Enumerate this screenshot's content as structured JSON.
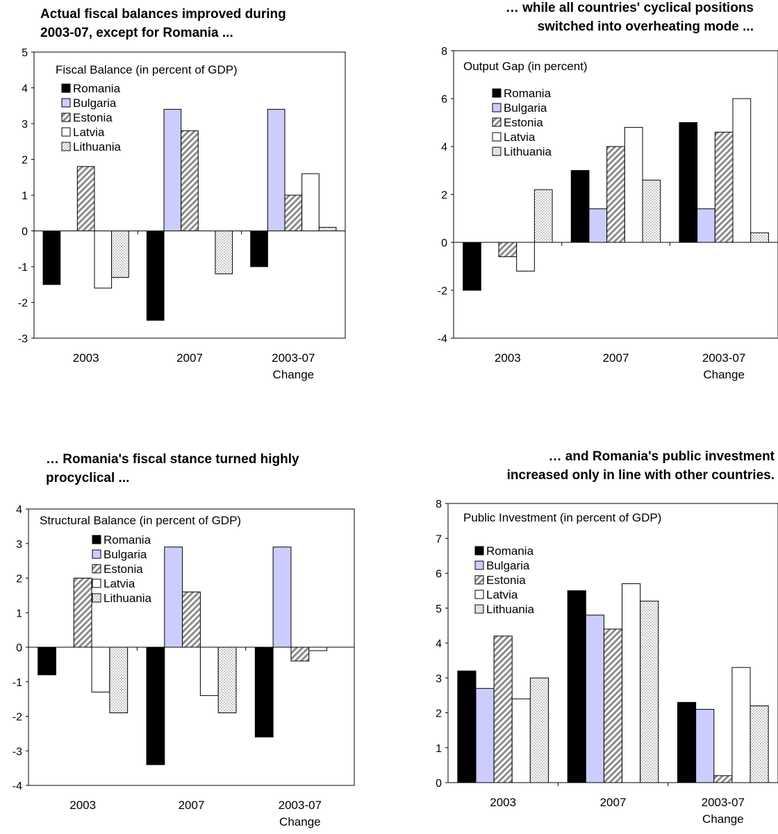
{
  "palette": {
    "Romania": "#000000",
    "Bulgaria": "#ccccff",
    "Estonia": "hatch",
    "Latvia": "#ffffff",
    "Lithuania": "dots"
  },
  "chart_data": [
    {
      "type": "bar",
      "title_lines": [
        "Actual fiscal balances improved during",
        "2003-07, except for Romania ..."
      ],
      "inner_title": "Fiscal Balance (in percent of GDP)",
      "categories": [
        [
          "2003"
        ],
        [
          "2007"
        ],
        [
          "2003-07",
          "Change"
        ]
      ],
      "ylim": [
        -3,
        5
      ],
      "yticks": [
        -3,
        -2,
        -1,
        0,
        1,
        2,
        3,
        4,
        5
      ],
      "legend": [
        "Romania",
        "Bulgaria",
        "Estonia",
        "Latvia",
        "Lithuania"
      ],
      "series": [
        {
          "name": "Romania",
          "values": [
            -1.5,
            -2.5,
            -1.0
          ]
        },
        {
          "name": "Bulgaria",
          "values": [
            0,
            3.4,
            3.4
          ]
        },
        {
          "name": "Estonia",
          "values": [
            1.8,
            2.8,
            1.0
          ]
        },
        {
          "name": "Latvia",
          "values": [
            -1.6,
            0,
            1.6
          ]
        },
        {
          "name": "Lithuania",
          "values": [
            -1.3,
            -1.2,
            0.1
          ]
        }
      ]
    },
    {
      "type": "bar",
      "title_lines": [
        "… while all countries' cyclical positions",
        "switched into overheating mode ..."
      ],
      "inner_title": "Output Gap (in percent)",
      "categories": [
        [
          "2003"
        ],
        [
          "2007"
        ],
        [
          "2003-07",
          "Change"
        ]
      ],
      "ylim": [
        -4,
        8
      ],
      "yticks": [
        -4,
        -2,
        0,
        2,
        4,
        6,
        8
      ],
      "legend": [
        "Romania",
        "Bulgaria",
        "Estonia",
        "Latvia",
        "Lithuania"
      ],
      "series": [
        {
          "name": "Romania",
          "values": [
            -2.0,
            3.0,
            5.0
          ]
        },
        {
          "name": "Bulgaria",
          "values": [
            0,
            1.4,
            1.4
          ]
        },
        {
          "name": "Estonia",
          "values": [
            -0.6,
            4.0,
            4.6
          ]
        },
        {
          "name": "Latvia",
          "values": [
            -1.2,
            4.8,
            6.0
          ]
        },
        {
          "name": "Lithuania",
          "values": [
            2.2,
            2.6,
            0.4
          ]
        }
      ]
    },
    {
      "type": "bar",
      "title_lines": [
        "… Romania's fiscal stance turned highly",
        "procyclical ..."
      ],
      "inner_title": "Structural Balance (in percent of GDP)",
      "categories": [
        [
          "2003"
        ],
        [
          "2007"
        ],
        [
          "2003-07",
          "Change"
        ]
      ],
      "ylim": [
        -4,
        4
      ],
      "yticks": [
        -4,
        -3,
        -2,
        -1,
        0,
        1,
        2,
        3,
        4
      ],
      "legend": [
        "Romania",
        "Bulgaria",
        "Estonia",
        "Latvia",
        "Lithuania"
      ],
      "series": [
        {
          "name": "Romania",
          "values": [
            -0.8,
            -3.4,
            -2.6
          ]
        },
        {
          "name": "Bulgaria",
          "values": [
            0,
            2.9,
            2.9
          ]
        },
        {
          "name": "Estonia",
          "values": [
            2.0,
            1.6,
            -0.4
          ]
        },
        {
          "name": "Latvia",
          "values": [
            -1.3,
            -1.4,
            -0.1
          ]
        },
        {
          "name": "Lithuania",
          "values": [
            -1.9,
            -1.9,
            0
          ]
        }
      ]
    },
    {
      "type": "bar",
      "title_lines": [
        "… and Romania's public investment",
        "increased only in line with other countries."
      ],
      "inner_title": "Public Investment (in percent of GDP)",
      "categories": [
        [
          "2003"
        ],
        [
          "2007"
        ],
        [
          "2003-07",
          "Change"
        ]
      ],
      "ylim": [
        0,
        8
      ],
      "yticks": [
        0,
        1,
        2,
        3,
        4,
        5,
        6,
        7,
        8
      ],
      "legend": [
        "Romania",
        "Bulgaria",
        "Estonia",
        "Latvia",
        "Lithuania"
      ],
      "series": [
        {
          "name": "Romania",
          "values": [
            3.2,
            5.5,
            2.3
          ]
        },
        {
          "name": "Bulgaria",
          "values": [
            2.7,
            4.8,
            2.1
          ]
        },
        {
          "name": "Estonia",
          "values": [
            4.2,
            4.4,
            0.2
          ]
        },
        {
          "name": "Latvia",
          "values": [
            2.4,
            5.7,
            3.3
          ]
        },
        {
          "name": "Lithuania",
          "values": [
            3.0,
            5.2,
            2.2
          ]
        }
      ]
    }
  ]
}
